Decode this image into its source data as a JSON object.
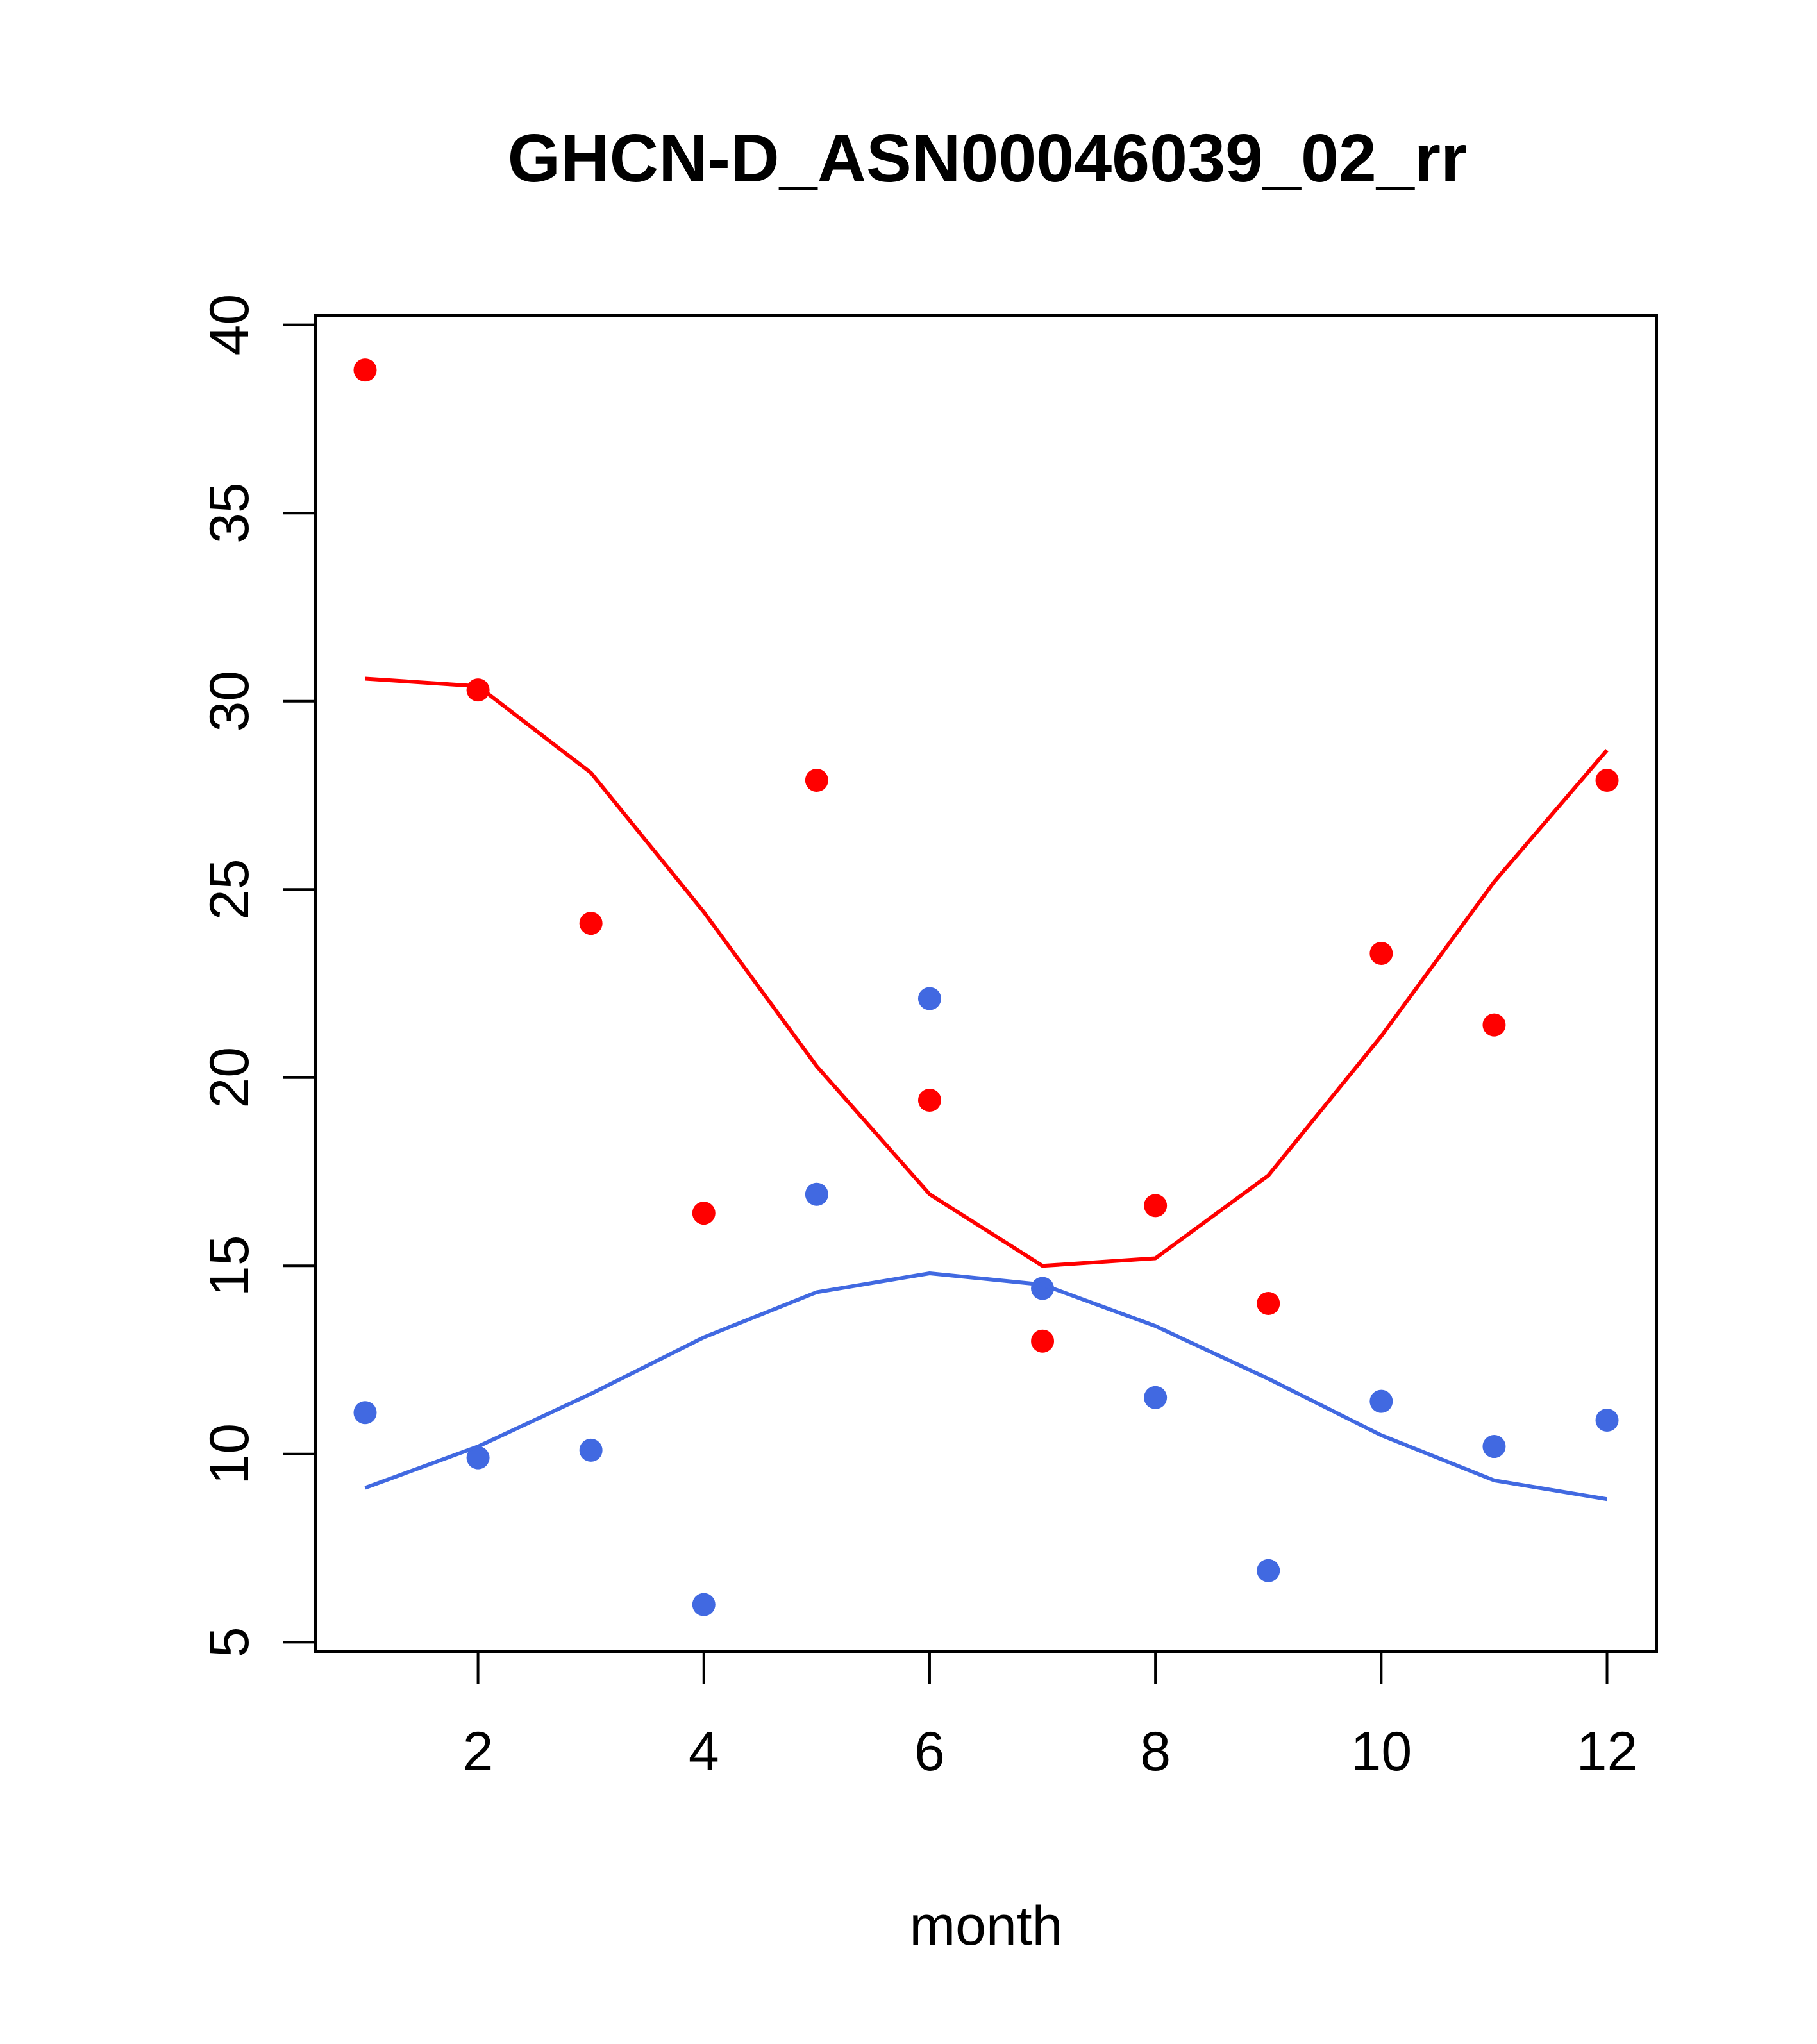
{
  "chart_data": {
    "type": "scatter",
    "title": "GHCN-D_ASN00046039_02_rr",
    "xlabel": "month",
    "ylabel": "",
    "xlim": [
      0.56,
      12.44
    ],
    "ylim": [
      4.75,
      40.25
    ],
    "xticks": [
      "2",
      "4",
      "6",
      "8",
      "10",
      "12"
    ],
    "yticks": [
      "5",
      "10",
      "15",
      "20",
      "25",
      "30",
      "35",
      "40"
    ],
    "grid": false,
    "legend": "none",
    "series": [
      {
        "kind": "points",
        "color": "#ff0000",
        "x": [
          1,
          2,
          3,
          4,
          5,
          6,
          7,
          8,
          9,
          10,
          11,
          12
        ],
        "y": [
          38.8,
          30.3,
          24.1,
          16.4,
          27.9,
          19.4,
          13.0,
          16.6,
          14.0,
          23.3,
          21.4,
          27.9
        ]
      },
      {
        "kind": "line",
        "color": "#ff0000",
        "x": [
          1,
          2,
          3,
          4,
          5,
          6,
          7,
          8,
          9,
          10,
          11,
          12
        ],
        "y": [
          30.6,
          30.4,
          28.1,
          24.4,
          20.3,
          16.9,
          15.0,
          15.2,
          17.4,
          21.1,
          25.2,
          28.7
        ]
      },
      {
        "kind": "points",
        "color": "#4169e1",
        "x": [
          1,
          2,
          3,
          4,
          5,
          6,
          7,
          8,
          9,
          10,
          11,
          12
        ],
        "y": [
          11.1,
          9.9,
          10.1,
          6.0,
          16.9,
          22.1,
          14.4,
          11.5,
          6.9,
          11.4,
          10.2,
          10.9
        ]
      },
      {
        "kind": "line",
        "color": "#4169e1",
        "x": [
          1,
          2,
          3,
          4,
          5,
          6,
          7,
          8,
          9,
          10,
          11,
          12
        ],
        "y": [
          9.1,
          10.2,
          11.6,
          13.1,
          14.3,
          14.8,
          14.5,
          13.4,
          12.0,
          10.5,
          9.3,
          8.8
        ]
      }
    ]
  }
}
